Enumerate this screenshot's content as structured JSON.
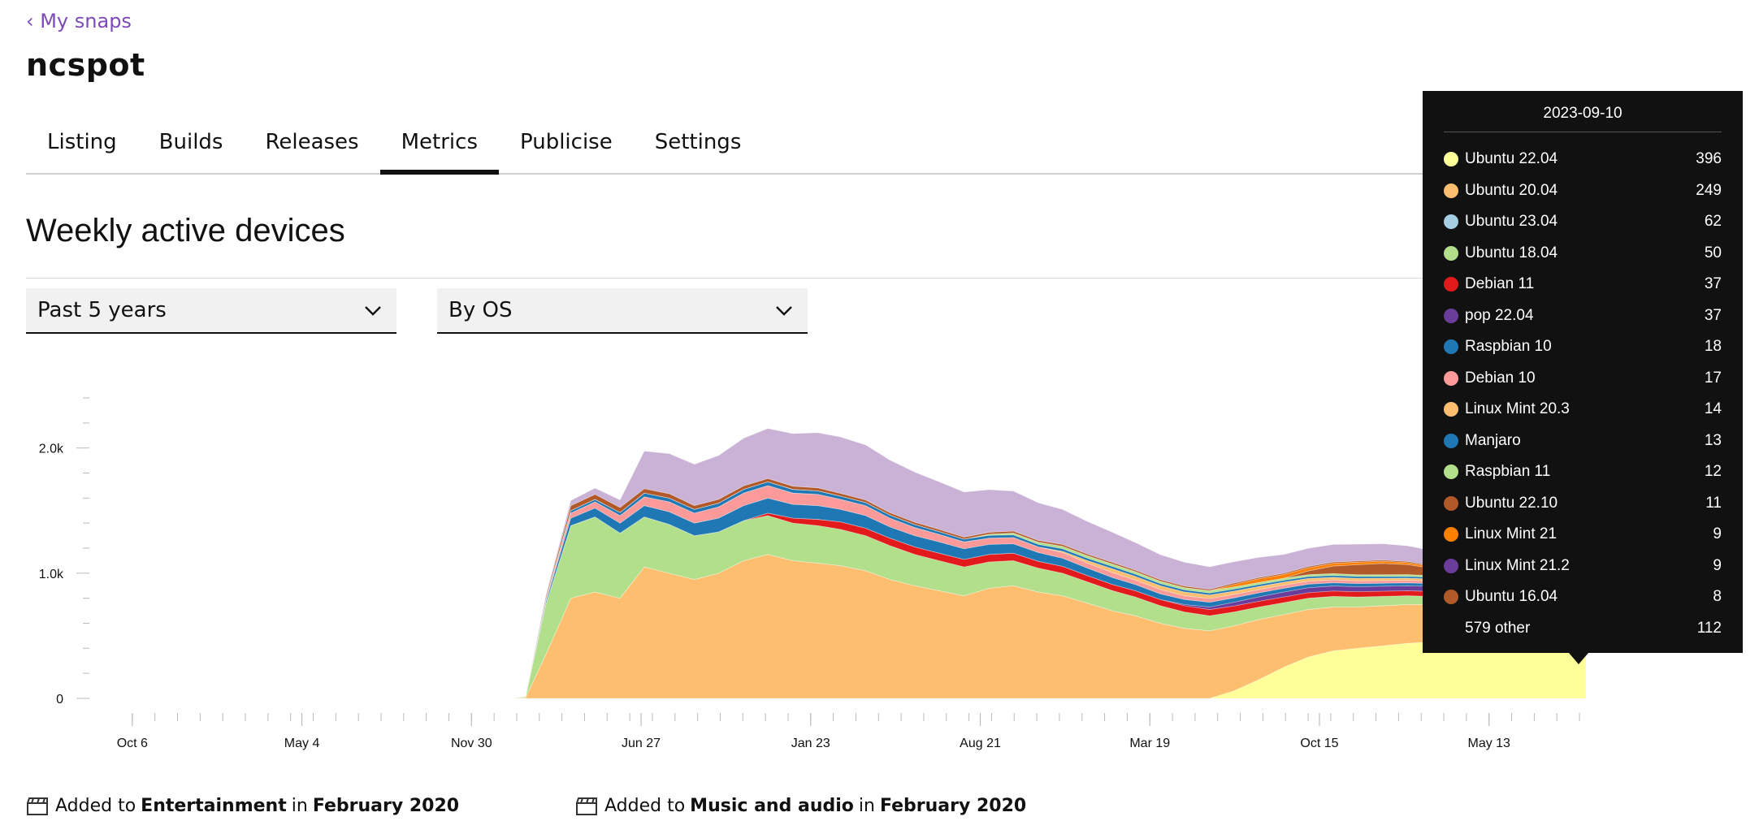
{
  "nav": {
    "back_label": "‹ My snaps"
  },
  "snap": {
    "name": "ncspot"
  },
  "tabs": [
    {
      "label": "Listing",
      "active": false
    },
    {
      "label": "Builds",
      "active": false
    },
    {
      "label": "Releases",
      "active": false
    },
    {
      "label": "Metrics",
      "active": true
    },
    {
      "label": "Publicise",
      "active": false
    },
    {
      "label": "Settings",
      "active": false
    }
  ],
  "metrics": {
    "title": "Weekly active devices",
    "period_select": "Past 5 years",
    "group_select": "By OS"
  },
  "chart_data": {
    "type": "area",
    "stacked": true,
    "title": "",
    "xlabel": "",
    "ylabel": "",
    "ylim": [
      0,
      2400
    ],
    "y_ticks": [
      {
        "v": 0,
        "label": "0"
      },
      {
        "v": 1000,
        "label": "1.0k"
      },
      {
        "v": 2000,
        "label": "2.0k"
      }
    ],
    "x_ticks": [
      {
        "x": "2018-10-06",
        "label": "Oct 6"
      },
      {
        "x": "2019-05-04",
        "label": "May 4"
      },
      {
        "x": "2019-11-30",
        "label": "Nov 30"
      },
      {
        "x": "2020-06-27",
        "label": "Jun 27"
      },
      {
        "x": "2021-01-23",
        "label": "Jan 23"
      },
      {
        "x": "2021-08-21",
        "label": "Aug 21"
      },
      {
        "x": "2022-03-19",
        "label": "Mar 19"
      },
      {
        "x": "2022-10-15",
        "label": "Oct 15"
      },
      {
        "x": "2023-05-13",
        "label": "May 13"
      }
    ],
    "x_range": [
      "2018-09-10",
      "2023-09-10"
    ],
    "x": [
      "2020-01-15",
      "2020-02-05",
      "2020-03-01",
      "2020-04-01",
      "2020-05-01",
      "2020-06-01",
      "2020-07-01",
      "2020-08-01",
      "2020-09-01",
      "2020-10-01",
      "2020-11-01",
      "2020-12-01",
      "2021-01-01",
      "2021-02-01",
      "2021-03-01",
      "2021-04-01",
      "2021-05-01",
      "2021-06-01",
      "2021-07-01",
      "2021-08-01",
      "2021-09-01",
      "2021-10-01",
      "2021-11-01",
      "2021-12-01",
      "2022-01-01",
      "2022-02-01",
      "2022-03-01",
      "2022-04-01",
      "2022-05-01",
      "2022-06-01",
      "2022-07-01",
      "2022-08-01",
      "2022-09-01",
      "2022-10-01",
      "2022-11-01",
      "2022-12-01",
      "2023-01-01",
      "2023-02-01",
      "2023-03-01",
      "2023-04-01",
      "2023-05-01",
      "2023-06-01",
      "2023-07-01",
      "2023-08-01",
      "2023-09-10"
    ],
    "series": [
      {
        "name": "Ubuntu 22.04",
        "color": "#ffff99",
        "values": [
          0,
          0,
          0,
          0,
          0,
          0,
          0,
          0,
          0,
          0,
          0,
          0,
          0,
          0,
          0,
          0,
          0,
          0,
          0,
          0,
          0,
          0,
          0,
          0,
          0,
          0,
          0,
          0,
          0,
          0,
          60,
          150,
          250,
          330,
          380,
          400,
          420,
          440,
          450,
          460,
          440,
          420,
          410,
          400,
          396
        ]
      },
      {
        "name": "Ubuntu 20.04",
        "color": "#fdbf6f",
        "values": [
          0,
          5,
          350,
          800,
          850,
          800,
          1050,
          1000,
          950,
          1000,
          1100,
          1150,
          1100,
          1080,
          1060,
          1020,
          950,
          900,
          860,
          820,
          880,
          900,
          850,
          820,
          760,
          700,
          660,
          600,
          560,
          540,
          520,
          480,
          420,
          380,
          350,
          330,
          320,
          310,
          300,
          290,
          280,
          270,
          260,
          255,
          249
        ]
      },
      {
        "name": "Ubuntu 23.04",
        "color": "#a6cee3",
        "values": [
          0,
          0,
          0,
          0,
          0,
          0,
          0,
          0,
          0,
          0,
          0,
          0,
          0,
          0,
          0,
          0,
          0,
          0,
          0,
          0,
          0,
          0,
          0,
          0,
          0,
          0,
          0,
          0,
          0,
          0,
          0,
          0,
          0,
          0,
          0,
          0,
          0,
          0,
          0,
          0,
          10,
          30,
          45,
          55,
          62
        ]
      },
      {
        "name": "Ubuntu 18.04",
        "color": "#b2df8a",
        "values": [
          0,
          10,
          400,
          580,
          600,
          520,
          400,
          390,
          350,
          330,
          320,
          310,
          300,
          300,
          290,
          280,
          270,
          250,
          240,
          230,
          210,
          200,
          190,
          180,
          170,
          160,
          150,
          140,
          130,
          120,
          110,
          100,
          95,
          90,
          85,
          80,
          75,
          70,
          65,
          62,
          58,
          56,
          54,
          52,
          50
        ]
      },
      {
        "name": "Debian 11",
        "color": "#e31a1c",
        "values": [
          0,
          0,
          0,
          0,
          0,
          0,
          0,
          0,
          0,
          0,
          0,
          20,
          40,
          50,
          60,
          60,
          60,
          60,
          60,
          60,
          60,
          60,
          55,
          55,
          50,
          50,
          50,
          50,
          50,
          50,
          48,
          46,
          45,
          44,
          43,
          42,
          41,
          40,
          40,
          39,
          39,
          38,
          38,
          37,
          37
        ]
      },
      {
        "name": "pop 22.04",
        "color": "#6a3d9a",
        "values": [
          0,
          0,
          0,
          0,
          0,
          0,
          0,
          0,
          0,
          0,
          0,
          0,
          0,
          0,
          0,
          0,
          0,
          0,
          0,
          0,
          0,
          0,
          0,
          0,
          0,
          0,
          0,
          0,
          10,
          20,
          30,
          35,
          40,
          40,
          40,
          40,
          40,
          40,
          40,
          38,
          38,
          37,
          37,
          37,
          37
        ]
      },
      {
        "name": "Raspbian 10",
        "color": "#1f78b4",
        "values": [
          0,
          0,
          20,
          60,
          70,
          80,
          90,
          100,
          100,
          110,
          120,
          120,
          110,
          110,
          100,
          100,
          90,
          90,
          90,
          85,
          80,
          75,
          70,
          65,
          60,
          55,
          50,
          45,
          40,
          38,
          35,
          32,
          30,
          28,
          26,
          25,
          24,
          23,
          22,
          21,
          20,
          19,
          19,
          18,
          18
        ]
      },
      {
        "name": "Debian 10",
        "color": "#fb9a99",
        "values": [
          0,
          0,
          10,
          40,
          50,
          60,
          70,
          80,
          80,
          90,
          100,
          100,
          90,
          90,
          80,
          80,
          70,
          65,
          60,
          55,
          50,
          50,
          45,
          45,
          40,
          40,
          35,
          35,
          30,
          30,
          28,
          26,
          25,
          24,
          23,
          22,
          21,
          20,
          20,
          19,
          19,
          18,
          18,
          17,
          17
        ]
      },
      {
        "name": "Linux Mint 20.3",
        "color": "#fdbf6f",
        "values": [
          0,
          0,
          0,
          0,
          0,
          0,
          0,
          0,
          0,
          0,
          0,
          0,
          0,
          0,
          0,
          0,
          0,
          0,
          0,
          0,
          0,
          0,
          0,
          10,
          20,
          30,
          30,
          30,
          30,
          28,
          26,
          25,
          24,
          22,
          20,
          20,
          19,
          18,
          17,
          16,
          16,
          15,
          15,
          14,
          14
        ]
      },
      {
        "name": "Manjaro",
        "color": "#1f78b4",
        "values": [
          0,
          0,
          10,
          20,
          20,
          25,
          30,
          30,
          30,
          30,
          30,
          30,
          30,
          28,
          26,
          25,
          25,
          24,
          23,
          22,
          22,
          21,
          20,
          20,
          19,
          18,
          18,
          17,
          17,
          16,
          16,
          16,
          15,
          15,
          15,
          15,
          14,
          14,
          14,
          14,
          13,
          13,
          13,
          13,
          13
        ]
      },
      {
        "name": "Raspbian 11",
        "color": "#b2df8a",
        "values": [
          0,
          0,
          0,
          0,
          0,
          0,
          0,
          0,
          0,
          0,
          0,
          0,
          0,
          0,
          0,
          0,
          0,
          0,
          0,
          0,
          10,
          15,
          18,
          20,
          20,
          20,
          20,
          19,
          18,
          18,
          17,
          16,
          16,
          15,
          15,
          14,
          14,
          14,
          13,
          13,
          13,
          12,
          12,
          12,
          12
        ]
      },
      {
        "name": "Ubuntu 22.10",
        "color": "#b15928",
        "values": [
          0,
          0,
          0,
          0,
          0,
          0,
          0,
          0,
          0,
          0,
          0,
          0,
          0,
          0,
          0,
          0,
          0,
          0,
          0,
          0,
          0,
          0,
          0,
          0,
          0,
          0,
          0,
          0,
          0,
          0,
          0,
          0,
          0,
          30,
          60,
          80,
          90,
          80,
          60,
          40,
          30,
          20,
          15,
          12,
          11
        ]
      },
      {
        "name": "Linux Mint 21",
        "color": "#ff7f00",
        "values": [
          0,
          0,
          0,
          0,
          0,
          0,
          0,
          0,
          0,
          0,
          0,
          0,
          0,
          0,
          0,
          0,
          0,
          0,
          0,
          0,
          0,
          0,
          0,
          0,
          0,
          0,
          0,
          0,
          0,
          0,
          20,
          30,
          30,
          25,
          22,
          20,
          18,
          16,
          14,
          12,
          11,
          10,
          10,
          9,
          9
        ]
      },
      {
        "name": "Linux Mint 21.2",
        "color": "#6a3d9a",
        "values": [
          0,
          0,
          0,
          0,
          0,
          0,
          0,
          0,
          0,
          0,
          0,
          0,
          0,
          0,
          0,
          0,
          0,
          0,
          0,
          0,
          0,
          0,
          0,
          0,
          0,
          0,
          0,
          0,
          0,
          0,
          0,
          0,
          0,
          0,
          0,
          0,
          0,
          0,
          0,
          0,
          0,
          3,
          6,
          8,
          9
        ]
      },
      {
        "name": "Ubuntu 16.04",
        "color": "#b15928",
        "values": [
          0,
          0,
          20,
          40,
          40,
          40,
          35,
          35,
          30,
          30,
          28,
          26,
          25,
          24,
          22,
          20,
          19,
          18,
          17,
          16,
          15,
          15,
          14,
          14,
          13,
          13,
          12,
          12,
          12,
          11,
          11,
          10,
          10,
          10,
          10,
          9,
          9,
          9,
          9,
          9,
          8,
          8,
          8,
          8,
          8
        ]
      },
      {
        "name": "579 other",
        "color": "#cab2d6",
        "values": [
          0,
          0,
          10,
          40,
          50,
          60,
          300,
          320,
          330,
          350,
          380,
          400,
          420,
          440,
          450,
          440,
          420,
          400,
          380,
          360,
          340,
          320,
          300,
          280,
          260,
          240,
          220,
          200,
          190,
          180,
          170,
          160,
          150,
          145,
          140,
          135,
          130,
          125,
          120,
          118,
          116,
          115,
          114,
          113,
          112
        ]
      }
    ]
  },
  "tooltip": {
    "date": "2023-09-10",
    "rows": [
      {
        "name": "Ubuntu 22.04",
        "value": "396",
        "color": "#ffff99"
      },
      {
        "name": "Ubuntu 20.04",
        "value": "249",
        "color": "#fdbf6f"
      },
      {
        "name": "Ubuntu 23.04",
        "value": "62",
        "color": "#a6cee3"
      },
      {
        "name": "Ubuntu 18.04",
        "value": "50",
        "color": "#b2df8a"
      },
      {
        "name": "Debian 11",
        "value": "37",
        "color": "#e31a1c"
      },
      {
        "name": "pop 22.04",
        "value": "37",
        "color": "#6a3d9a"
      },
      {
        "name": "Raspbian 10",
        "value": "18",
        "color": "#1f78b4"
      },
      {
        "name": "Debian 10",
        "value": "17",
        "color": "#fb9a99"
      },
      {
        "name": "Linux Mint 20.3",
        "value": "14",
        "color": "#fdbf6f"
      },
      {
        "name": "Manjaro",
        "value": "13",
        "color": "#1f78b4"
      },
      {
        "name": "Raspbian 11",
        "value": "12",
        "color": "#b2df8a"
      },
      {
        "name": "Ubuntu 22.10",
        "value": "11",
        "color": "#b15928"
      },
      {
        "name": "Linux Mint 21",
        "value": "9",
        "color": "#ff7f00"
      },
      {
        "name": "Linux Mint 21.2",
        "value": "9",
        "color": "#6a3d9a"
      },
      {
        "name": "Ubuntu 16.04",
        "value": "8",
        "color": "#b15928"
      },
      {
        "name": "579 other",
        "value": "112",
        "color": ""
      }
    ]
  },
  "footer": {
    "items": [
      {
        "prefix": "Added to",
        "category": "Entertainment",
        "middle": "in",
        "date": "February 2020"
      },
      {
        "prefix": "Added to",
        "category": "Music and audio",
        "middle": "in",
        "date": "February 2020"
      }
    ]
  }
}
